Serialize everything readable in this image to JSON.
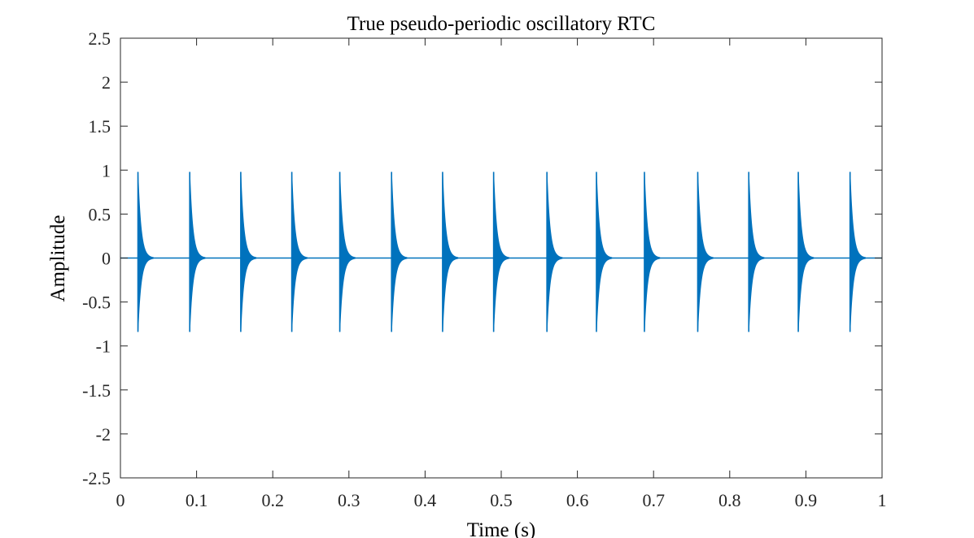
{
  "chart_data": {
    "type": "line",
    "title": "True pseudo-periodic oscillatory RTC",
    "xlabel": "Time (s)",
    "ylabel": "Amplitude",
    "xlim": [
      0,
      1
    ],
    "ylim": [
      -2.5,
      2.5
    ],
    "xticks": [
      0,
      0.1,
      0.2,
      0.3,
      0.4,
      0.5,
      0.6,
      0.7,
      0.8,
      0.9,
      1
    ],
    "xtick_labels": [
      "0",
      "0.1",
      "0.2",
      "0.3",
      "0.4",
      "0.5",
      "0.6",
      "0.7",
      "0.8",
      "0.9",
      "1"
    ],
    "yticks": [
      2.5,
      2,
      1.5,
      1,
      0.5,
      0,
      -0.5,
      -1,
      -1.5,
      -2,
      -2.5
    ],
    "ytick_labels": [
      "2.5",
      "2",
      "1.5",
      "1",
      "0.5",
      "0",
      "-0.5",
      "-1",
      "-1.5",
      "-2",
      "-2.5"
    ],
    "grid": false,
    "box": true,
    "series": [
      {
        "color": "#0072BD",
        "baseline": 0,
        "burst_times": [
          0.023,
          0.091,
          0.158,
          0.225,
          0.288,
          0.356,
          0.423,
          0.49,
          0.56,
          0.625,
          0.688,
          0.758,
          0.825,
          0.89,
          0.958
        ],
        "burst_peak_max": 0.98,
        "burst_peak_min": -0.84,
        "burst_decay_duration": 0.02
      }
    ]
  }
}
